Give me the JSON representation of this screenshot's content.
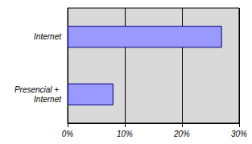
{
  "chart_data": {
    "type": "bar",
    "orientation": "horizontal",
    "categories": [
      "Internet",
      "Presencial + Internet"
    ],
    "values": [
      27,
      8
    ],
    "color": "#9999ff",
    "xlim": [
      0,
      30
    ],
    "xticks": [
      {
        "value": 0,
        "label": "0%"
      },
      {
        "value": 10,
        "label": "10%"
      },
      {
        "value": 20,
        "label": "20%"
      },
      {
        "value": 30,
        "label": "30%"
      }
    ],
    "grid": true
  }
}
